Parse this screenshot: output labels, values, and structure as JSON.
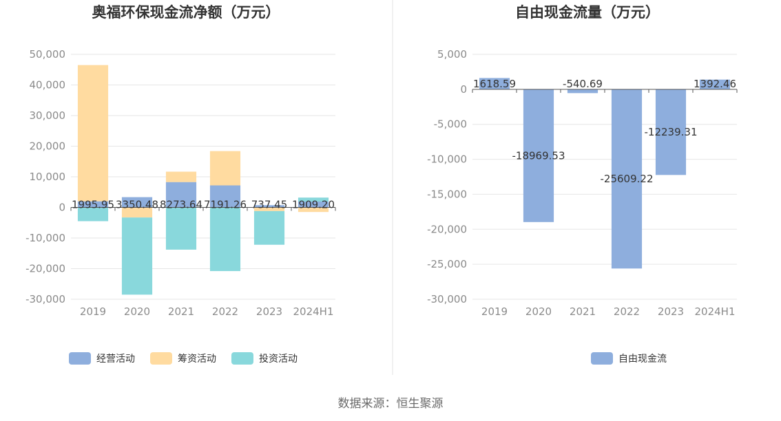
{
  "source_label": "数据来源：恒生聚源",
  "colors": {
    "operating": "#8eaedd",
    "financing": "#ffdba0",
    "investing": "#89d8dc",
    "free_cash_flow": "#8eaedd",
    "grid": "#e6e6e6",
    "zero_line": "#555555",
    "divider": "#e3e3e3"
  },
  "chart_data": [
    {
      "type": "bar",
      "stacked": true,
      "title": "奥福环保现金流净额（万元）",
      "categories": [
        "2019",
        "2020",
        "2021",
        "2022",
        "2023",
        "2024H1"
      ],
      "ylim": [
        -30000,
        50000
      ],
      "yticks": [
        50000,
        40000,
        30000,
        20000,
        10000,
        0,
        -10000,
        -20000,
        -30000
      ],
      "ytick_labels": [
        "50,000",
        "40,000",
        "30,000",
        "20,000",
        "10,000",
        "0",
        "-10,000",
        "-20,000",
        "-30,000"
      ],
      "grid": true,
      "legend_position": "bottom",
      "series": [
        {
          "name": "经营活动",
          "key": "operating",
          "values": [
            1995.95,
            3350.48,
            8273.64,
            7191.26,
            737.45,
            1909.2
          ]
        },
        {
          "name": "筹资活动",
          "key": "financing",
          "values": [
            44500,
            -3300,
            3400,
            11200,
            -1200,
            -1500
          ]
        },
        {
          "name": "投资活动",
          "key": "investing",
          "values": [
            -4500,
            -25200,
            -13800,
            -20800,
            -11000,
            1300
          ]
        }
      ],
      "data_labels": [
        "1995.95",
        "3350.48",
        "8273.64",
        "7191.26",
        "737.45",
        "1909.20"
      ]
    },
    {
      "type": "bar",
      "title": "自由现金流量（万元）",
      "categories": [
        "2019",
        "2020",
        "2021",
        "2022",
        "2023",
        "2024H1"
      ],
      "ylim": [
        -30000,
        5000
      ],
      "yticks": [
        5000,
        0,
        -5000,
        -10000,
        -15000,
        -20000,
        -25000,
        -30000
      ],
      "ytick_labels": [
        "5,000",
        "0",
        "-5,000",
        "-10,000",
        "-15,000",
        "-20,000",
        "-25,000",
        "-30,000"
      ],
      "grid": true,
      "legend_position": "bottom",
      "series": [
        {
          "name": "自由现金流",
          "key": "free_cash_flow",
          "values": [
            1618.59,
            -18969.53,
            -540.69,
            -25609.22,
            -12239.31,
            1392.46
          ]
        }
      ],
      "data_labels": [
        "1618.59",
        "-18969.53",
        "-540.69",
        "-25609.22",
        "-12239.31",
        "1392.46"
      ]
    }
  ]
}
